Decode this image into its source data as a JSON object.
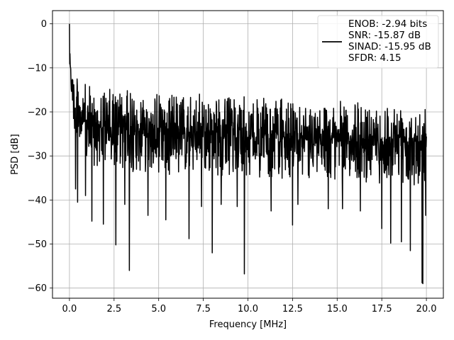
{
  "chart_data": {
    "type": "line",
    "title": "",
    "xlabel": "Frequency [MHz]",
    "ylabel": "PSD [dB]",
    "xlim": [
      -0.95,
      20.95
    ],
    "ylim": [
      -62.3,
      3.0
    ],
    "xticks": [
      0.0,
      2.5,
      5.0,
      7.5,
      10.0,
      12.5,
      15.0,
      17.5,
      20.0
    ],
    "xtick_labels": [
      "0.0",
      "2.5",
      "5.0",
      "7.5",
      "10.0",
      "12.5",
      "15.0",
      "17.5",
      "20.0"
    ],
    "yticks": [
      0,
      -10,
      -20,
      -30,
      -40,
      -50,
      -60
    ],
    "ytick_labels": [
      "0",
      "−10",
      "−20",
      "−30",
      "−40",
      "−50",
      "−60"
    ],
    "grid": true,
    "legend_position": "top-right",
    "series_color": "#000000",
    "series": [
      {
        "name": "ENOB: -2.94 bits\nSNR: -15.87 dB\nSINAD: -15.95 dB\nSFDR: 4.15",
        "description": "dense noisy spectrum, band roughly -18 to -32 dB",
        "envelope_upper": [
          [
            0.0,
            0.0
          ],
          [
            0.05,
            -5.0
          ],
          [
            0.15,
            -9.0
          ],
          [
            0.3,
            -11.0
          ],
          [
            0.6,
            -13.0
          ],
          [
            1.5,
            -14.5
          ],
          [
            4.0,
            -15.0
          ],
          [
            8.0,
            -16.0
          ],
          [
            12.0,
            -17.0
          ],
          [
            16.0,
            -17.5
          ],
          [
            20.0,
            -17.0
          ]
        ],
        "envelope_lower": [
          [
            0.0,
            -11.0
          ],
          [
            0.3,
            -28.0
          ],
          [
            1.0,
            -33.0
          ],
          [
            4.0,
            -34.0
          ],
          [
            10.0,
            -35.0
          ],
          [
            16.0,
            -36.0
          ],
          [
            20.0,
            -37.0
          ]
        ],
        "spikes": [
          {
            "x": 0.35,
            "y": -37.5
          },
          {
            "x": 0.45,
            "y": -40.5
          },
          {
            "x": 0.9,
            "y": -39.0
          },
          {
            "x": 1.25,
            "y": -44.8
          },
          {
            "x": 1.9,
            "y": -45.5
          },
          {
            "x": 2.6,
            "y": -50.2
          },
          {
            "x": 3.1,
            "y": -41.0
          },
          {
            "x": 3.35,
            "y": -56.0
          },
          {
            "x": 4.4,
            "y": -43.5
          },
          {
            "x": 5.4,
            "y": -44.5
          },
          {
            "x": 6.7,
            "y": -48.8
          },
          {
            "x": 7.4,
            "y": -41.5
          },
          {
            "x": 8.0,
            "y": -52.0
          },
          {
            "x": 8.5,
            "y": -41.0
          },
          {
            "x": 9.4,
            "y": -41.5
          },
          {
            "x": 9.8,
            "y": -56.8
          },
          {
            "x": 11.3,
            "y": -42.5
          },
          {
            "x": 12.5,
            "y": -45.7
          },
          {
            "x": 12.8,
            "y": -41.0
          },
          {
            "x": 14.5,
            "y": -42.0
          },
          {
            "x": 15.3,
            "y": -42.0
          },
          {
            "x": 16.3,
            "y": -42.5
          },
          {
            "x": 17.5,
            "y": -46.5
          },
          {
            "x": 18.0,
            "y": -49.8
          },
          {
            "x": 18.6,
            "y": -49.5
          },
          {
            "x": 19.1,
            "y": -51.5
          },
          {
            "x": 19.75,
            "y": -58.8
          },
          {
            "x": 19.8,
            "y": -59.0
          },
          {
            "x": 19.95,
            "y": -43.5
          }
        ]
      }
    ]
  }
}
